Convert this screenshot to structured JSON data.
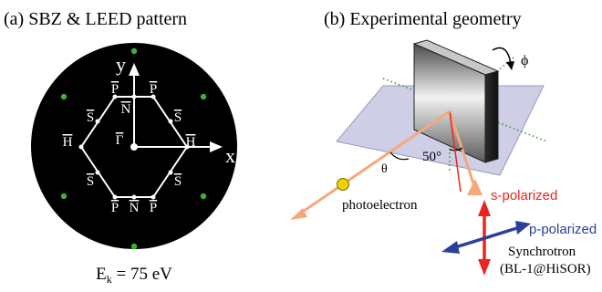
{
  "panel_a": {
    "title": "(a)  SBZ & LEED pattern",
    "axis_x": "x",
    "axis_y": "y",
    "points": {
      "gamma": "Γ",
      "n_top": "N",
      "n_bottom": "N",
      "p_top_left": "P",
      "p_top_right": "P",
      "p_bottom_left": "P",
      "p_bottom_right": "P",
      "s_upper_left": "S",
      "s_upper_right": "S",
      "s_lower_left": "S",
      "s_lower_right": "S",
      "h_left": "H",
      "h_right": "H"
    },
    "ek_symbol": "E",
    "ek_subscript": "k",
    "ek_value": " = 75 eV",
    "colors": {
      "background": "#000000",
      "lines": "#ffffff",
      "spots": "#3fae3a"
    }
  },
  "panel_b": {
    "title": "(b) Experimental geometry",
    "phi": "ϕ",
    "theta": "θ",
    "angle": "50°",
    "photoelectron": "photoelectron",
    "s_polarized": "s-polarized",
    "p_polarized": "p-polarized",
    "source_line1": "Synchrotron",
    "source_line2": "(BL-1@HiSOR)",
    "colors": {
      "plane": "#c5c5e2",
      "beam": "#f4a97c",
      "s_pol": "#e8261d",
      "p_pol": "#2d3f9b",
      "electron": "#f0d200",
      "axis_dots": "#2e9a2e"
    }
  }
}
